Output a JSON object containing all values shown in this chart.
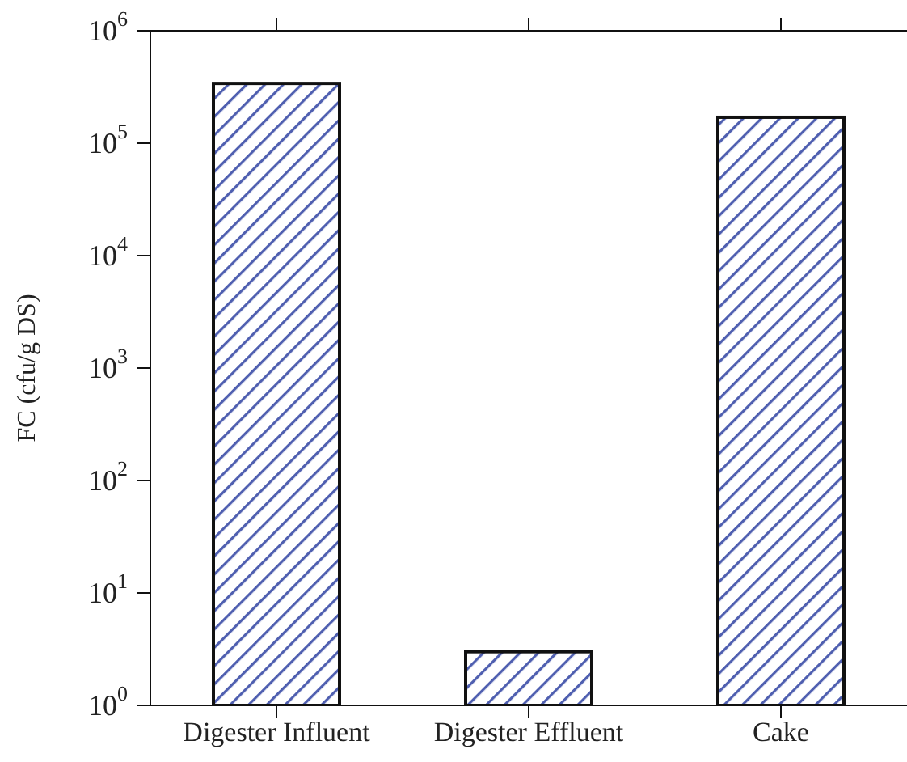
{
  "chart_data": {
    "type": "bar",
    "categories": [
      "Digester Influent",
      "Digester Effluent",
      "Cake"
    ],
    "values": [
      340000,
      3,
      170000
    ],
    "color": "#4f5fb0",
    "ylabel": "FC (cfu/g DS)",
    "log": true,
    "ylim": [
      1,
      1000000
    ],
    "yticks": [
      {
        "value": 1,
        "label": "10$^{0}$"
      },
      {
        "value": 10,
        "label": "10$^{1}$"
      },
      {
        "value": 100,
        "label": "10$^{2}$"
      },
      {
        "value": 1000,
        "label": "10$^{3}$"
      },
      {
        "value": 10000,
        "label": "10$^{4}$"
      },
      {
        "value": 100000,
        "label": "10$^{5}$"
      },
      {
        "value": 1000000,
        "label": "10$^{6}$"
      }
    ],
    "grid": false,
    "legend": false
  }
}
